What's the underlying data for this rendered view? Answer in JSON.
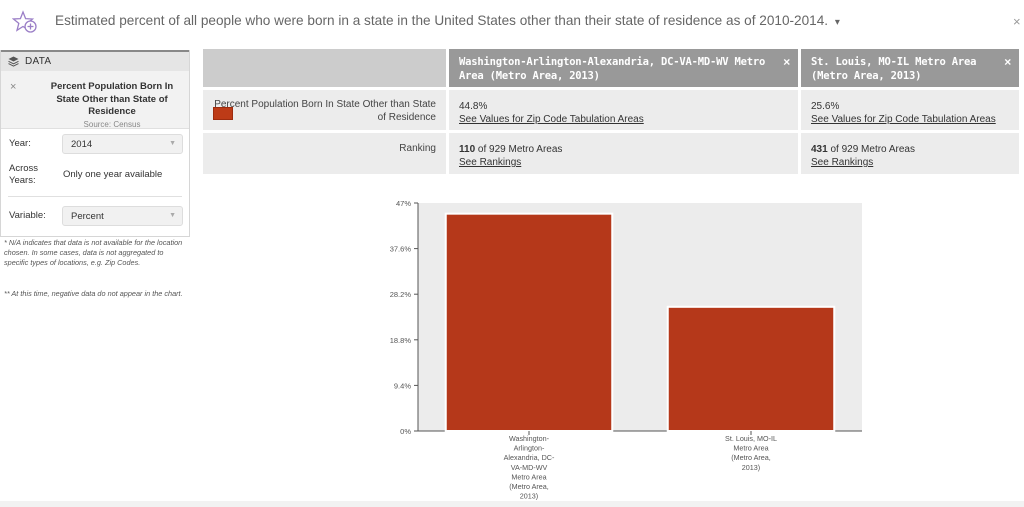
{
  "header": {
    "title": "Estimated percent of all people who were born in a state in the United States other than their state of residence as of 2010-2014.",
    "caret": "▾",
    "close": "×"
  },
  "panel": {
    "header_label": "DATA",
    "indicator_name": "Percent Population Born In State Other than State of Residence",
    "indicator_source": "Source: Census",
    "remove": "×",
    "year_label": "Year:",
    "year_value": "2014",
    "across_years_label": "Across Years:",
    "across_years_value": "Only one year available",
    "variable_label": "Variable:",
    "variable_value": "Percent",
    "footnote1": "* N/A indicates that data is not available for the location chosen. In some cases, data is not aggregated to specific types of locations, e.g. Zip Codes.",
    "footnote2": "** At this time, negative data do not appear in the chart."
  },
  "table": {
    "columns": [
      {
        "name": "Washington-Arlington-Alexandria, DC-VA-MD-WV Metro Area (Metro Area, 2013)",
        "close": "×"
      },
      {
        "name": "St. Louis, MO-IL Metro Area (Metro Area, 2013)",
        "close": "×"
      }
    ],
    "rows": {
      "indicator": {
        "label": "Percent Population Born In State Other than State of Residence",
        "values": [
          "44.8%",
          "25.6%"
        ],
        "link": "See Values for Zip Code Tabulation Areas"
      },
      "ranking": {
        "label": "Ranking",
        "ranks": [
          "110",
          "431"
        ],
        "of_text": "of 929 Metro Areas",
        "link": "See Rankings"
      }
    },
    "swatch_color": "#bd3b17"
  },
  "chart_data": {
    "type": "bar",
    "categories": [
      "Washington-Arlington-Alexandria, DC-VA-MD-WV Metro Area (Metro Area, 2013)",
      "St. Louis, MO-IL Metro Area (Metro Area, 2013)"
    ],
    "category_label_lines": [
      [
        "Washington-",
        "Arlington-",
        "Alexandria, DC-",
        "VA-MD-WV",
        "Metro Area",
        "(Metro Area,",
        "2013)"
      ],
      [
        "St. Louis, MO-IL",
        "Metro Area",
        "(Metro Area,",
        "2013)"
      ]
    ],
    "values": [
      44.8,
      25.6
    ],
    "yticks": [
      "0%",
      "9.4%",
      "18.8%",
      "28.2%",
      "37.6%",
      "47%"
    ],
    "ylim": [
      0,
      47
    ],
    "grid": false,
    "bar_color": "#b5381a",
    "plot_bg": "#ececec"
  }
}
